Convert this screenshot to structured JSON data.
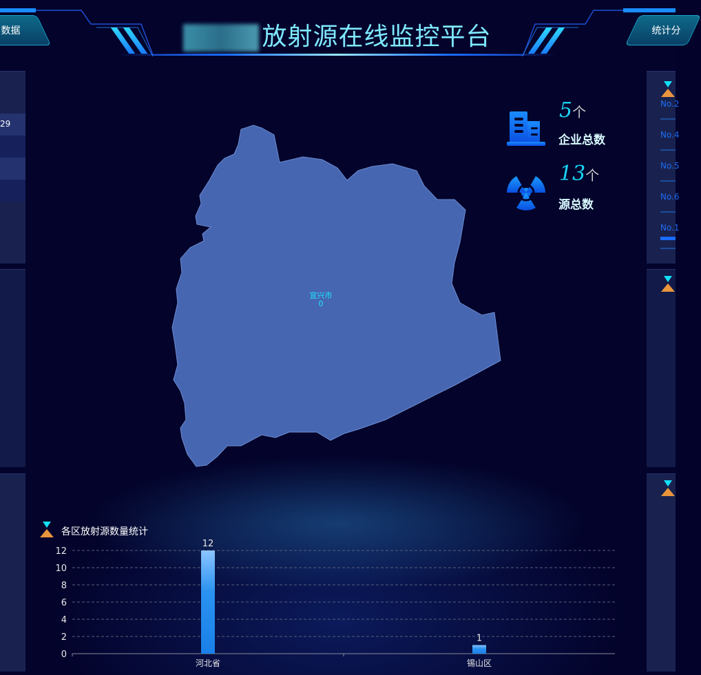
{
  "header": {
    "title_prefix_blurred": "",
    "title": "放射源在线监控平台",
    "left_tab": "数据",
    "right_tab": "统计分"
  },
  "left_panel": {
    "row_value": "29"
  },
  "right_panel": {
    "ranks": [
      "No.2",
      "No.4",
      "No.5",
      "No.6",
      "No.1"
    ]
  },
  "stats": [
    {
      "value": "5",
      "unit": "个",
      "label": "企业总数",
      "icon": "building-icon"
    },
    {
      "value": "13",
      "unit": "个",
      "label": "源总数",
      "icon": "radiation-icon"
    }
  ],
  "map": {
    "region": "宜兴市",
    "value": "0",
    "fill": "#4a6cb8"
  },
  "chart_data": {
    "type": "bar",
    "title": "各区放射源数量统计",
    "categories": [
      "河北省",
      "锡山区"
    ],
    "values": [
      12,
      1
    ],
    "ylim": [
      0,
      12
    ],
    "yticks": [
      0,
      2,
      4,
      6,
      8,
      10,
      12
    ],
    "grid": true,
    "data_labels": true,
    "bar_color": "#1e88ee"
  }
}
